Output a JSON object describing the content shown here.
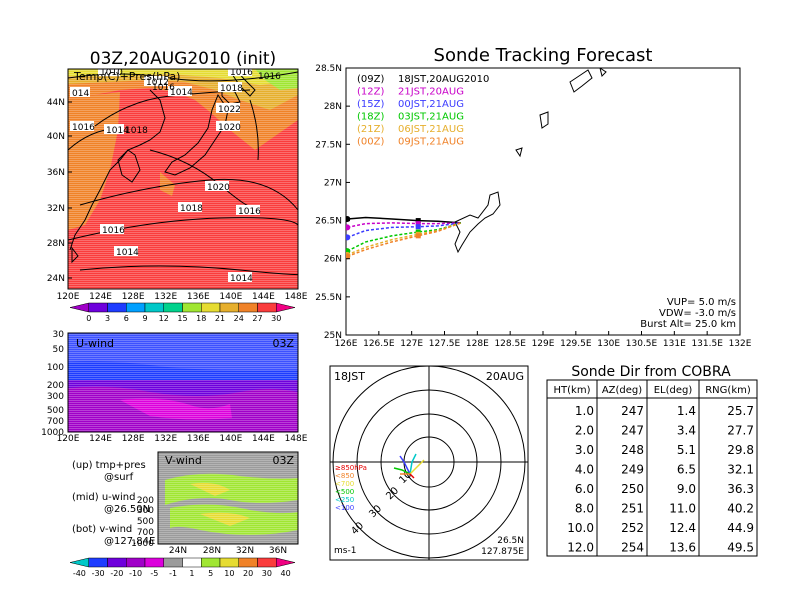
{
  "init_map": {
    "title": "03Z,20AUG2010 (init)",
    "subtitle": "Temp(C)+Pres(hPa)",
    "lat_labels": [
      "44N",
      "40N",
      "36N",
      "32N",
      "28N",
      "24N"
    ],
    "lon_labels": [
      "120E",
      "124E",
      "128E",
      "132E",
      "136E",
      "140E",
      "144E",
      "148E"
    ],
    "pressure_labels": [
      "1010",
      "1012",
      "1014",
      "1016",
      "1018",
      "1016",
      "1014",
      "1018",
      "1016",
      "1016",
      "1022",
      "1020",
      "1020",
      "1018",
      "1016",
      "1016",
      "1014",
      "1014",
      "014"
    ],
    "colorbar_labels": [
      "0",
      "3",
      "6",
      "9",
      "12",
      "15",
      "18",
      "21",
      "24",
      "27",
      "30"
    ],
    "colorbar_colors": [
      "#a000c8",
      "#6e00dc",
      "#1e3cff",
      "#00a0ff",
      "#00c8c8",
      "#00d28c",
      "#a0e632",
      "#e6dc32",
      "#e6af2d",
      "#f08228",
      "#fa3c3c",
      "#f00082"
    ]
  },
  "uwind": {
    "label": "U-wind",
    "time": "03Z",
    "y_labels": [
      "30",
      "50",
      "100",
      "200",
      "300",
      "500",
      "700",
      "1000"
    ],
    "x_labels": [
      "120E",
      "124E",
      "128E",
      "132E",
      "136E",
      "140E",
      "144E",
      "148E"
    ]
  },
  "vwind": {
    "label": "V-wind",
    "time": "03Z",
    "y_labels": [
      "200",
      "300",
      "500",
      "700",
      "1000"
    ],
    "x_labels": [
      "24N",
      "28N",
      "32N",
      "36N"
    ],
    "colorbar_labels": [
      "-40",
      "-30",
      "-20",
      "-10",
      "-5",
      "-1",
      "1",
      "5",
      "10",
      "20",
      "30",
      "40"
    ],
    "colorbar_colors": [
      "#00c8c8",
      "#1e3cff",
      "#6e00dc",
      "#a000c8",
      "#dc00dc",
      "#9b9b9b",
      "#ffffff",
      "#a0e632",
      "#e6dc32",
      "#f08228",
      "#fa3c3c",
      "#f00082"
    ]
  },
  "legend_notes": [
    {
      "line1": "(up) tmp+pres",
      "line2": "@surf"
    },
    {
      "line1": "(mid) u-wind",
      "line2": "@26.50N"
    },
    {
      "line1": "(bot) v-wind",
      "line2": "@127.84E"
    }
  ],
  "chart_data": {
    "type": "line",
    "title": "Sonde Tracking Forecast",
    "xlim": [
      126,
      132
    ],
    "ylim": [
      25,
      28.5
    ],
    "x_ticks": [
      "126E",
      "126.5E",
      "127E",
      "127.5E",
      "128E",
      "128.5E",
      "129E",
      "129.5E",
      "130E",
      "130.5E",
      "131E",
      "131.5E",
      "132E"
    ],
    "y_ticks": [
      "28.5N",
      "28N",
      "27.5N",
      "27N",
      "26.5N",
      "26N",
      "25.5N",
      "25N"
    ],
    "legend": [
      {
        "code": "(09Z)",
        "time": "18JST,20AUG2010",
        "color": "#000000"
      },
      {
        "code": "(12Z)",
        "time": "21JST,20AUG",
        "color": "#c800c8"
      },
      {
        "code": "(15Z)",
        "time": "00JST,21AUG",
        "color": "#3c3cff"
      },
      {
        "code": "(18Z)",
        "time": "03JST,21AUG",
        "color": "#00c800"
      },
      {
        "code": "(21Z)",
        "time": "06JST,21AUG",
        "color": "#e6af2d"
      },
      {
        "code": "(00Z)",
        "time": "09JST,21AUG",
        "color": "#f08228"
      }
    ],
    "series": [
      {
        "name": "(09Z)",
        "x": [
          126.02,
          126.3,
          126.7,
          127.1,
          127.4,
          127.75
        ],
        "y": [
          26.52,
          26.54,
          26.52,
          26.5,
          26.49,
          26.47
        ]
      },
      {
        "name": "(12Z)",
        "x": [
          126.02,
          126.3,
          126.7,
          127.1,
          127.4,
          127.75
        ],
        "y": [
          26.41,
          26.46,
          26.47,
          26.46,
          26.46,
          26.47
        ]
      },
      {
        "name": "(15Z)",
        "x": [
          126.02,
          126.3,
          126.7,
          127.1,
          127.4,
          127.75
        ],
        "y": [
          26.28,
          26.37,
          26.41,
          26.42,
          26.43,
          26.47
        ]
      },
      {
        "name": "(18Z)",
        "x": [
          126.02,
          126.3,
          126.7,
          127.1,
          127.4,
          127.75
        ],
        "y": [
          26.1,
          26.22,
          26.3,
          26.35,
          26.38,
          26.47
        ]
      },
      {
        "name": "(21Z)",
        "x": [
          126.02,
          126.3,
          126.7,
          127.1,
          127.4,
          127.75
        ],
        "y": [
          26.05,
          26.15,
          26.25,
          26.32,
          26.37,
          26.47
        ]
      },
      {
        "name": "(00Z)",
        "x": [
          126.02,
          126.3,
          126.7,
          127.1,
          127.4,
          127.75
        ],
        "y": [
          26.03,
          26.12,
          26.22,
          26.3,
          26.36,
          26.47
        ]
      }
    ],
    "info": [
      "VUP= 5.0 m/s",
      "VDW= -3.0 m/s",
      "Burst Alt= 25.0 km"
    ]
  },
  "polar": {
    "left_label": "18JST",
    "right_label": "20AUG",
    "ring_labels": [
      "10",
      "20",
      "30",
      "40"
    ],
    "level_labels": [
      "≥850hPa",
      "<850",
      "<700",
      "<500",
      "<250",
      "<100"
    ],
    "level_colors": [
      "#e60000",
      "#f08228",
      "#e6dc32",
      "#00c800",
      "#00c8c8",
      "#3c3cff"
    ],
    "corner_left": "ms-1",
    "corner_right1": "26.5N",
    "corner_right2": "127.875E"
  },
  "sonde_table": {
    "title": "Sonde Dir from COBRA",
    "headers": [
      "HT(km)",
      "AZ(deg)",
      "EL(deg)",
      "RNG(km)"
    ],
    "rows": [
      [
        "1.0",
        "247",
        "1.4",
        "25.7"
      ],
      [
        "2.0",
        "247",
        "3.4",
        "27.7"
      ],
      [
        "3.0",
        "248",
        "5.1",
        "29.8"
      ],
      [
        "4.0",
        "249",
        "6.5",
        "32.1"
      ],
      [
        "6.0",
        "250",
        "9.0",
        "36.3"
      ],
      [
        "8.0",
        "251",
        "11.0",
        "40.2"
      ],
      [
        "10.0",
        "252",
        "12.4",
        "44.9"
      ],
      [
        "12.0",
        "254",
        "13.6",
        "49.5"
      ]
    ]
  }
}
